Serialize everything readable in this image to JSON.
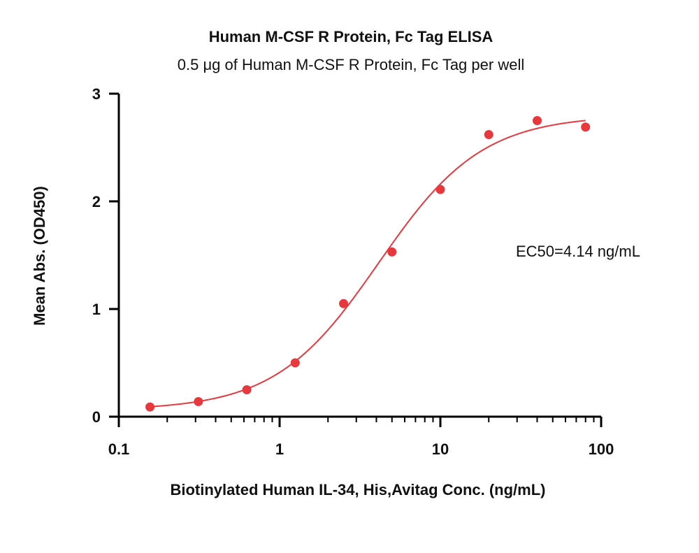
{
  "chart_data": {
    "type": "scatter",
    "title": "Human M-CSF R Protein, Fc Tag ELISA",
    "subtitle": "0.5 μg of Human M-CSF R Protein, Fc Tag per well",
    "xlabel": "Biotinylated Human IL-34, His,Avitag Conc. (ng/mL)",
    "ylabel": "Mean Abs. (OD450)",
    "x_scale": "log",
    "xlim": [
      0.1,
      100
    ],
    "ylim": [
      0,
      3
    ],
    "x_ticks": [
      {
        "value": 0.1,
        "label": "0.1"
      },
      {
        "value": 1,
        "label": "1"
      },
      {
        "value": 10,
        "label": "10"
      },
      {
        "value": 100,
        "label": "100"
      }
    ],
    "y_ticks": [
      {
        "value": 0,
        "label": "0"
      },
      {
        "value": 1,
        "label": "1"
      },
      {
        "value": 2,
        "label": "2"
      },
      {
        "value": 3,
        "label": "3"
      }
    ],
    "grid": false,
    "series": [
      {
        "x": [
          0.15625,
          0.3125,
          0.625,
          1.25,
          2.5,
          5,
          10,
          20,
          40,
          80
        ],
        "y": [
          0.09,
          0.14,
          0.25,
          0.5,
          1.05,
          1.53,
          2.11,
          2.62,
          2.75,
          2.69
        ],
        "color": "#e8383d"
      }
    ],
    "fit_curve": {
      "model": "4PL",
      "bottom": 0.06,
      "top": 2.8,
      "ec50": 4.14,
      "hill": 1.35,
      "color": "#e8383d"
    },
    "annotations": [
      {
        "text": "EC50=4.14 ng/mL"
      }
    ]
  }
}
